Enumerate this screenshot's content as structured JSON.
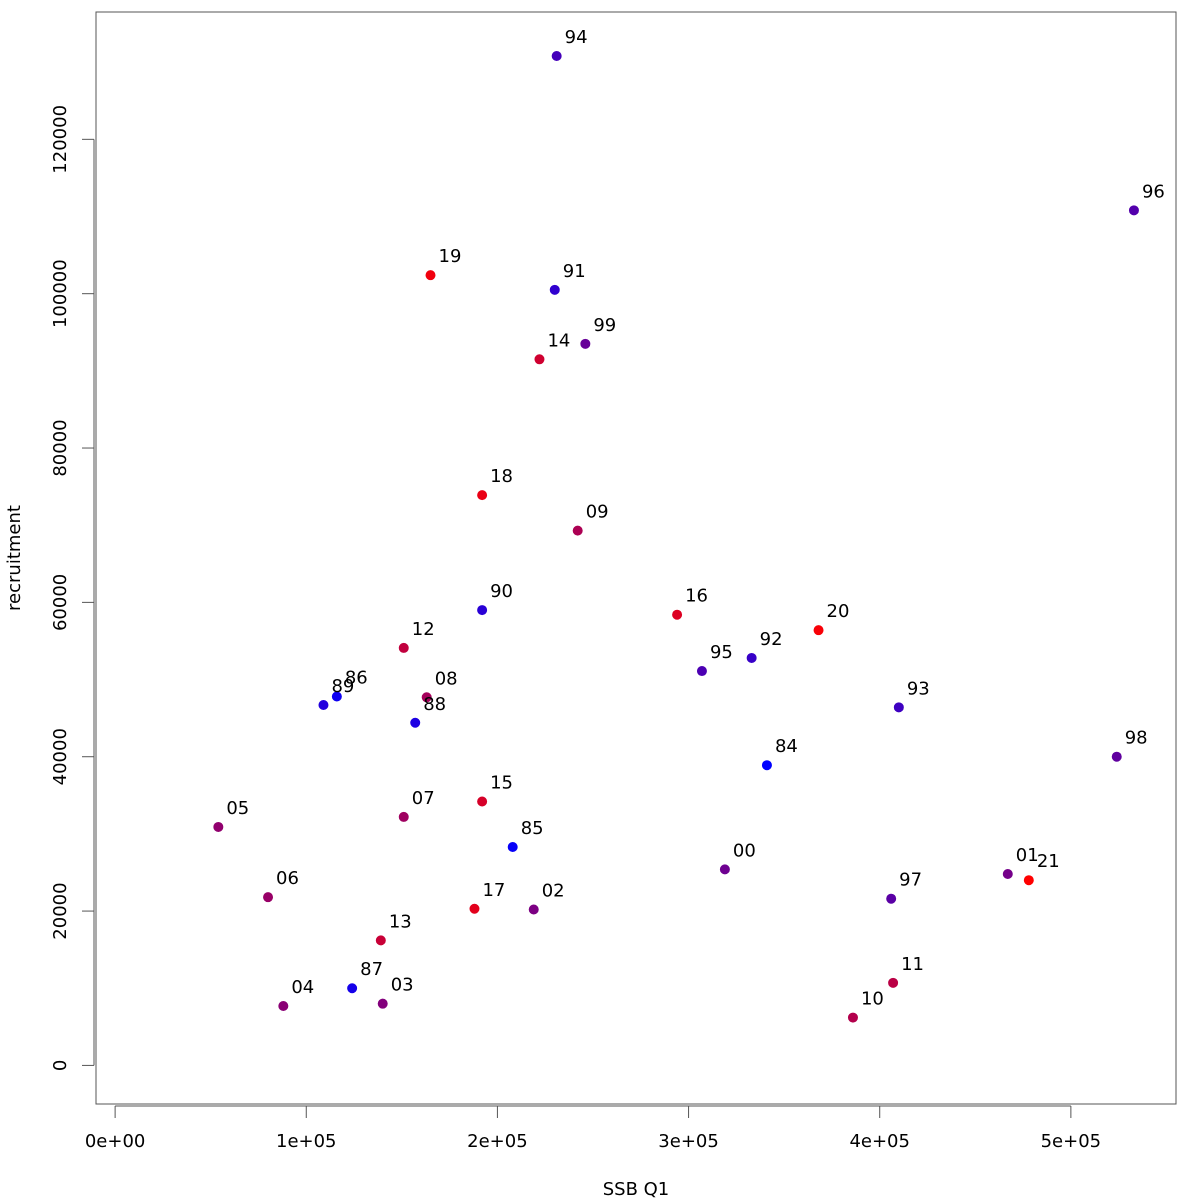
{
  "chart_data": {
    "type": "scatter",
    "xlabel": "SSB Q1",
    "ylabel": "recruitment",
    "xlim": [
      -10000,
      555000
    ],
    "ylim": [
      -5000,
      136500
    ],
    "x_ticks": [
      0,
      100000,
      200000,
      300000,
      400000,
      500000
    ],
    "x_tick_labels": [
      "0e+00",
      "1e+05",
      "2e+05",
      "3e+05",
      "4e+05",
      "5e+05"
    ],
    "y_ticks": [
      0,
      20000,
      40000,
      60000,
      80000,
      100000,
      120000
    ],
    "y_tick_labels": [
      "0",
      "20000",
      "40000",
      "60000",
      "80000",
      "100000",
      "120000"
    ],
    "grid": false,
    "color_start": "#0000ff",
    "color_end": "#ff0000",
    "points": [
      {
        "label": "84",
        "x": 341000,
        "y": 38900
      },
      {
        "label": "85",
        "x": 208000,
        "y": 28300
      },
      {
        "label": "86",
        "x": 116000,
        "y": 47800
      },
      {
        "label": "87",
        "x": 124000,
        "y": 10000
      },
      {
        "label": "88",
        "x": 157000,
        "y": 44400
      },
      {
        "label": "89",
        "x": 109000,
        "y": 46700
      },
      {
        "label": "90",
        "x": 192000,
        "y": 59000
      },
      {
        "label": "91",
        "x": 230000,
        "y": 100500
      },
      {
        "label": "92",
        "x": 333000,
        "y": 52800
      },
      {
        "label": "93",
        "x": 410000,
        "y": 46400
      },
      {
        "label": "94",
        "x": 231000,
        "y": 130800
      },
      {
        "label": "95",
        "x": 307000,
        "y": 51100
      },
      {
        "label": "96",
        "x": 533000,
        "y": 110800
      },
      {
        "label": "97",
        "x": 406000,
        "y": 21600
      },
      {
        "label": "98",
        "x": 524000,
        "y": 40000
      },
      {
        "label": "99",
        "x": 246000,
        "y": 93500
      },
      {
        "label": "00",
        "x": 319000,
        "y": 25400
      },
      {
        "label": "01",
        "x": 467000,
        "y": 24800
      },
      {
        "label": "02",
        "x": 219000,
        "y": 20200
      },
      {
        "label": "03",
        "x": 140000,
        "y": 8000
      },
      {
        "label": "04",
        "x": 88000,
        "y": 7700
      },
      {
        "label": "05",
        "x": 54000,
        "y": 30900
      },
      {
        "label": "06",
        "x": 80000,
        "y": 21800
      },
      {
        "label": "07",
        "x": 151000,
        "y": 32200
      },
      {
        "label": "08",
        "x": 163000,
        "y": 47700
      },
      {
        "label": "09",
        "x": 242000,
        "y": 69300
      },
      {
        "label": "10",
        "x": 386000,
        "y": 6200
      },
      {
        "label": "11",
        "x": 407000,
        "y": 10700
      },
      {
        "label": "12",
        "x": 151000,
        "y": 54100
      },
      {
        "label": "13",
        "x": 139000,
        "y": 16200
      },
      {
        "label": "14",
        "x": 222000,
        "y": 91500
      },
      {
        "label": "15",
        "x": 192000,
        "y": 34200
      },
      {
        "label": "16",
        "x": 294000,
        "y": 58400
      },
      {
        "label": "17",
        "x": 188000,
        "y": 20300
      },
      {
        "label": "18",
        "x": 192000,
        "y": 73900
      },
      {
        "label": "19",
        "x": 165000,
        "y": 102400
      },
      {
        "label": "20",
        "x": 368000,
        "y": 56400
      },
      {
        "label": "21",
        "x": 478000,
        "y": 24000
      }
    ]
  }
}
